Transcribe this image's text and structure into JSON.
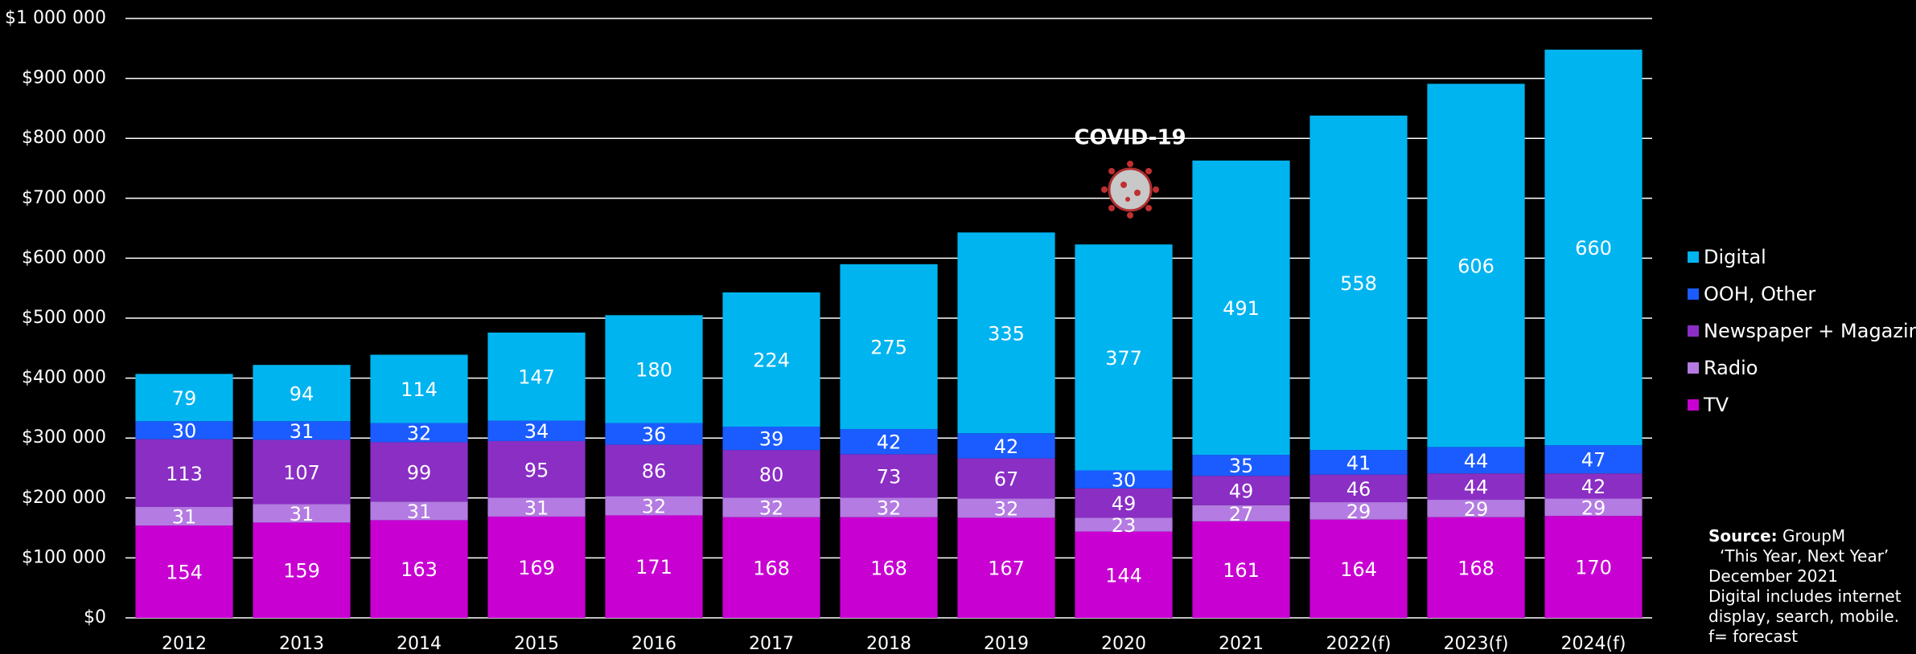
{
  "chart_data": {
    "type": "stacked-bar",
    "categories": [
      "2012",
      "2013",
      "2014",
      "2015",
      "2016",
      "2017",
      "2018",
      "2019",
      "2020",
      "2021",
      "2022(f)",
      "2023(f)",
      "2024(f)"
    ],
    "series": [
      {
        "name": "TV",
        "color": "#c800d2",
        "values": [
          154000,
          159000,
          163000,
          169000,
          171000,
          168000,
          168000,
          167000,
          144000,
          161000,
          164000,
          168000,
          170000
        ],
        "value_labels": [
          "154",
          "159",
          "163",
          "169",
          "171",
          "168",
          "168",
          "167",
          "144",
          "161",
          "164",
          "168",
          "170"
        ]
      },
      {
        "name": "Radio",
        "color": "#b47be2",
        "values": [
          31000,
          31000,
          31000,
          31000,
          32000,
          32000,
          32000,
          32000,
          23000,
          27000,
          29000,
          29000,
          29000
        ],
        "value_labels": [
          "31",
          "31",
          "31",
          "31",
          "32",
          "32",
          "32",
          "32",
          "23",
          "27",
          "29",
          "29",
          "29"
        ]
      },
      {
        "name": "Newspaper + Magazine",
        "color": "#8a2ec4",
        "values": [
          113000,
          107000,
          99000,
          95000,
          86000,
          80000,
          73000,
          67000,
          49000,
          49000,
          46000,
          44000,
          42000
        ],
        "value_labels": [
          "113",
          "107",
          "99",
          "95",
          "86",
          "80",
          "73",
          "67",
          "49",
          "49",
          "46",
          "44",
          "42"
        ]
      },
      {
        "name": "OOH, Other",
        "color": "#1a5cff",
        "values": [
          30000,
          31000,
          32000,
          34000,
          36000,
          39000,
          42000,
          42000,
          30000,
          35000,
          41000,
          44000,
          47000
        ],
        "value_labels": [
          "30",
          "31",
          "32",
          "34",
          "36",
          "39",
          "42",
          "42",
          "30",
          "35",
          "41",
          "44",
          "47"
        ]
      },
      {
        "name": "Digital",
        "color": "#00b4f0",
        "values": [
          79000,
          94000,
          114000,
          147000,
          180000,
          224000,
          275000,
          335000,
          377000,
          491000,
          558000,
          606000,
          660000
        ],
        "value_labels": [
          "79",
          "94",
          "114",
          "147",
          "180",
          "224",
          "275",
          "335",
          "377",
          "491",
          "558",
          "606",
          "660"
        ]
      }
    ],
    "ylim": [
      0,
      1000000
    ],
    "yticks": [
      {
        "value": 0,
        "label": "$0"
      },
      {
        "value": 100000,
        "label": "$100 000"
      },
      {
        "value": 200000,
        "label": "$200 000"
      },
      {
        "value": 300000,
        "label": "$300 000"
      },
      {
        "value": 400000,
        "label": "$400 000"
      },
      {
        "value": 500000,
        "label": "$500 000"
      },
      {
        "value": 600000,
        "label": "$600 000"
      },
      {
        "value": 700000,
        "label": "$700 000"
      },
      {
        "value": 800000,
        "label": "$800 000"
      },
      {
        "value": 900000,
        "label": "$900 000"
      },
      {
        "value": 1000000,
        "label": "$1 000 000"
      }
    ],
    "grid": true,
    "legend": "right",
    "annotation": "COVID-19",
    "source": {
      "label": "Source:",
      "name": "GroupM",
      "notes": [
        "‘This Year, Next Year’",
        "December 2021",
        "Digital includes internet display, search, mobile.",
        "f= forecast"
      ]
    }
  }
}
